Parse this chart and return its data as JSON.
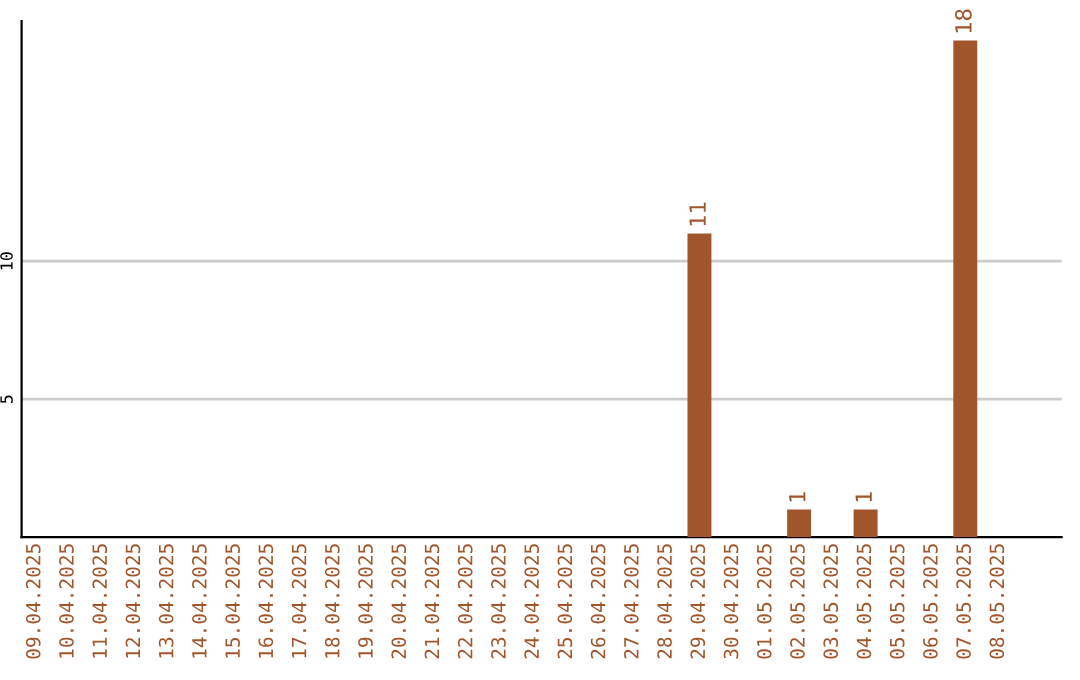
{
  "chart_data": {
    "type": "bar",
    "categories": [
      "09.04.2025",
      "10.04.2025",
      "11.04.2025",
      "12.04.2025",
      "13.04.2025",
      "14.04.2025",
      "15.04.2025",
      "16.04.2025",
      "17.04.2025",
      "18.04.2025",
      "19.04.2025",
      "20.04.2025",
      "21.04.2025",
      "22.04.2025",
      "23.04.2025",
      "24.04.2025",
      "25.04.2025",
      "26.04.2025",
      "27.04.2025",
      "28.04.2025",
      "29.04.2025",
      "30.04.2025",
      "01.05.2025",
      "02.05.2025",
      "03.05.2025",
      "04.05.2025",
      "05.05.2025",
      "06.05.2025",
      "07.05.2025",
      "08.05.2025"
    ],
    "values": [
      0,
      0,
      0,
      0,
      0,
      0,
      0,
      0,
      0,
      0,
      0,
      0,
      0,
      0,
      0,
      0,
      0,
      0,
      0,
      0,
      11,
      0,
      0,
      1,
      0,
      1,
      0,
      0,
      18,
      0
    ],
    "value_labels": [
      null,
      null,
      null,
      null,
      null,
      null,
      null,
      null,
      null,
      null,
      null,
      null,
      null,
      null,
      null,
      null,
      null,
      null,
      null,
      null,
      "11",
      null,
      null,
      "1",
      null,
      "1",
      null,
      null,
      "18",
      null
    ],
    "color": "#a0562a",
    "ylim": [
      0,
      18.7
    ],
    "yticks": [
      5,
      10
    ],
    "grid": "y"
  }
}
